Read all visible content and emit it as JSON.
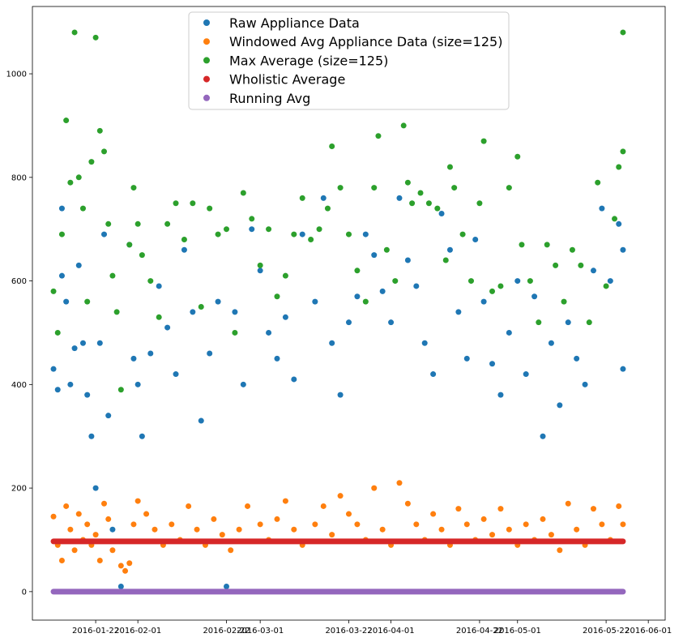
{
  "chart_data": {
    "type": "scatter",
    "title": "",
    "xlabel": "",
    "ylabel": "",
    "x_range": [
      "2016-01-07",
      "2016-06-05"
    ],
    "ylim": [
      -55,
      1130
    ],
    "grid": false,
    "legend_position": "top-center",
    "x_ticks": [
      {
        "date": "2016-01-22",
        "label": "2016-01-22"
      },
      {
        "date": "2016-02-01",
        "label": "2016-02-01"
      },
      {
        "date": "2016-02-22",
        "label": "2016-02-22"
      },
      {
        "date": "2016-03-01",
        "label": "2016-03-01"
      },
      {
        "date": "2016-03-22",
        "label": "2016-03-22"
      },
      {
        "date": "2016-04-01",
        "label": "2016-04-01"
      },
      {
        "date": "2016-04-22",
        "label": "2016-04-22"
      },
      {
        "date": "2016-05-01",
        "label": "2016-05-01"
      },
      {
        "date": "2016-05-22",
        "label": "2016-05-22"
      },
      {
        "date": "2016-06-01",
        "label": "2016-06-01"
      }
    ],
    "y_ticks": [
      0,
      200,
      400,
      600,
      800,
      1000
    ],
    "series": [
      {
        "name": "Raw Appliance Data",
        "color": "#1f77b4",
        "points": [
          [
            "2016-01-12",
            430
          ],
          [
            "2016-01-13",
            390
          ],
          [
            "2016-01-14",
            740
          ],
          [
            "2016-01-14",
            610
          ],
          [
            "2016-01-15",
            560
          ],
          [
            "2016-01-16",
            400
          ],
          [
            "2016-01-17",
            470
          ],
          [
            "2016-01-18",
            630
          ],
          [
            "2016-01-19",
            480
          ],
          [
            "2016-01-20",
            380
          ],
          [
            "2016-01-21",
            300
          ],
          [
            "2016-01-22",
            200
          ],
          [
            "2016-01-23",
            480
          ],
          [
            "2016-01-24",
            690
          ],
          [
            "2016-01-25",
            340
          ],
          [
            "2016-01-26",
            120
          ],
          [
            "2016-01-28",
            10
          ],
          [
            "2016-01-30",
            670
          ],
          [
            "2016-01-31",
            450
          ],
          [
            "2016-02-01",
            400
          ],
          [
            "2016-02-02",
            300
          ],
          [
            "2016-02-04",
            460
          ],
          [
            "2016-02-06",
            590
          ],
          [
            "2016-02-08",
            510
          ],
          [
            "2016-02-10",
            420
          ],
          [
            "2016-02-12",
            660
          ],
          [
            "2016-02-14",
            540
          ],
          [
            "2016-02-16",
            330
          ],
          [
            "2016-02-18",
            460
          ],
          [
            "2016-02-20",
            560
          ],
          [
            "2016-02-22",
            10
          ],
          [
            "2016-02-24",
            540
          ],
          [
            "2016-02-26",
            400
          ],
          [
            "2016-02-28",
            700
          ],
          [
            "2016-03-01",
            620
          ],
          [
            "2016-03-03",
            500
          ],
          [
            "2016-03-05",
            450
          ],
          [
            "2016-03-07",
            530
          ],
          [
            "2016-03-09",
            410
          ],
          [
            "2016-03-11",
            690
          ],
          [
            "2016-03-14",
            560
          ],
          [
            "2016-03-16",
            760
          ],
          [
            "2016-03-18",
            480
          ],
          [
            "2016-03-20",
            380
          ],
          [
            "2016-03-22",
            520
          ],
          [
            "2016-03-24",
            570
          ],
          [
            "2016-03-26",
            690
          ],
          [
            "2016-03-28",
            650
          ],
          [
            "2016-03-30",
            580
          ],
          [
            "2016-04-01",
            520
          ],
          [
            "2016-04-03",
            760
          ],
          [
            "2016-04-05",
            640
          ],
          [
            "2016-04-07",
            590
          ],
          [
            "2016-04-09",
            480
          ],
          [
            "2016-04-11",
            420
          ],
          [
            "2016-04-13",
            730
          ],
          [
            "2016-04-15",
            660
          ],
          [
            "2016-04-17",
            540
          ],
          [
            "2016-04-19",
            450
          ],
          [
            "2016-04-21",
            680
          ],
          [
            "2016-04-23",
            560
          ],
          [
            "2016-04-25",
            440
          ],
          [
            "2016-04-27",
            380
          ],
          [
            "2016-04-29",
            500
          ],
          [
            "2016-05-01",
            600
          ],
          [
            "2016-05-03",
            420
          ],
          [
            "2016-05-05",
            570
          ],
          [
            "2016-05-07",
            300
          ],
          [
            "2016-05-09",
            480
          ],
          [
            "2016-05-11",
            360
          ],
          [
            "2016-05-13",
            520
          ],
          [
            "2016-05-15",
            450
          ],
          [
            "2016-05-17",
            400
          ],
          [
            "2016-05-19",
            620
          ],
          [
            "2016-05-21",
            740
          ],
          [
            "2016-05-23",
            600
          ],
          [
            "2016-05-25",
            710
          ],
          [
            "2016-05-26",
            660
          ],
          [
            "2016-05-26",
            430
          ]
        ]
      },
      {
        "name": "Windowed Avg Appliance Data (size=125)",
        "color": "#ff7f0e",
        "points": [
          [
            "2016-01-12",
            145
          ],
          [
            "2016-01-13",
            90
          ],
          [
            "2016-01-14",
            60
          ],
          [
            "2016-01-15",
            165
          ],
          [
            "2016-01-16",
            120
          ],
          [
            "2016-01-17",
            80
          ],
          [
            "2016-01-18",
            150
          ],
          [
            "2016-01-19",
            100
          ],
          [
            "2016-01-20",
            130
          ],
          [
            "2016-01-21",
            90
          ],
          [
            "2016-01-22",
            110
          ],
          [
            "2016-01-23",
            60
          ],
          [
            "2016-01-24",
            170
          ],
          [
            "2016-01-25",
            140
          ],
          [
            "2016-01-26",
            80
          ],
          [
            "2016-01-28",
            50
          ],
          [
            "2016-01-29",
            40
          ],
          [
            "2016-01-30",
            55
          ],
          [
            "2016-01-31",
            130
          ],
          [
            "2016-02-01",
            175
          ],
          [
            "2016-02-03",
            150
          ],
          [
            "2016-02-05",
            120
          ],
          [
            "2016-02-07",
            90
          ],
          [
            "2016-02-09",
            130
          ],
          [
            "2016-02-11",
            100
          ],
          [
            "2016-02-13",
            165
          ],
          [
            "2016-02-15",
            120
          ],
          [
            "2016-02-17",
            90
          ],
          [
            "2016-02-19",
            140
          ],
          [
            "2016-02-21",
            110
          ],
          [
            "2016-02-23",
            80
          ],
          [
            "2016-02-25",
            120
          ],
          [
            "2016-02-27",
            165
          ],
          [
            "2016-03-01",
            130
          ],
          [
            "2016-03-03",
            100
          ],
          [
            "2016-03-05",
            140
          ],
          [
            "2016-03-07",
            175
          ],
          [
            "2016-03-09",
            120
          ],
          [
            "2016-03-11",
            90
          ],
          [
            "2016-03-14",
            130
          ],
          [
            "2016-03-16",
            165
          ],
          [
            "2016-03-18",
            110
          ],
          [
            "2016-03-20",
            185
          ],
          [
            "2016-03-22",
            150
          ],
          [
            "2016-03-24",
            130
          ],
          [
            "2016-03-26",
            100
          ],
          [
            "2016-03-28",
            200
          ],
          [
            "2016-03-30",
            120
          ],
          [
            "2016-04-01",
            90
          ],
          [
            "2016-04-03",
            210
          ],
          [
            "2016-04-05",
            170
          ],
          [
            "2016-04-07",
            130
          ],
          [
            "2016-04-09",
            100
          ],
          [
            "2016-04-11",
            150
          ],
          [
            "2016-04-13",
            120
          ],
          [
            "2016-04-15",
            90
          ],
          [
            "2016-04-17",
            160
          ],
          [
            "2016-04-19",
            130
          ],
          [
            "2016-04-21",
            100
          ],
          [
            "2016-04-23",
            140
          ],
          [
            "2016-04-25",
            110
          ],
          [
            "2016-04-27",
            160
          ],
          [
            "2016-04-29",
            120
          ],
          [
            "2016-05-01",
            90
          ],
          [
            "2016-05-03",
            130
          ],
          [
            "2016-05-05",
            100
          ],
          [
            "2016-05-07",
            140
          ],
          [
            "2016-05-09",
            110
          ],
          [
            "2016-05-11",
            80
          ],
          [
            "2016-05-13",
            170
          ],
          [
            "2016-05-15",
            120
          ],
          [
            "2016-05-17",
            90
          ],
          [
            "2016-05-19",
            160
          ],
          [
            "2016-05-21",
            130
          ],
          [
            "2016-05-23",
            100
          ],
          [
            "2016-05-25",
            165
          ],
          [
            "2016-05-26",
            130
          ]
        ]
      },
      {
        "name": "Max Average (size=125)",
        "color": "#2ca02c",
        "points": [
          [
            "2016-01-12",
            580
          ],
          [
            "2016-01-13",
            500
          ],
          [
            "2016-01-14",
            690
          ],
          [
            "2016-01-15",
            910
          ],
          [
            "2016-01-16",
            790
          ],
          [
            "2016-01-17",
            1080
          ],
          [
            "2016-01-18",
            800
          ],
          [
            "2016-01-19",
            740
          ],
          [
            "2016-01-20",
            560
          ],
          [
            "2016-01-21",
            830
          ],
          [
            "2016-01-22",
            1070
          ],
          [
            "2016-01-23",
            890
          ],
          [
            "2016-01-24",
            850
          ],
          [
            "2016-01-25",
            710
          ],
          [
            "2016-01-26",
            610
          ],
          [
            "2016-01-27",
            540
          ],
          [
            "2016-01-28",
            390
          ],
          [
            "2016-01-30",
            670
          ],
          [
            "2016-01-31",
            780
          ],
          [
            "2016-02-01",
            710
          ],
          [
            "2016-02-02",
            650
          ],
          [
            "2016-02-04",
            600
          ],
          [
            "2016-02-06",
            530
          ],
          [
            "2016-02-08",
            710
          ],
          [
            "2016-02-10",
            750
          ],
          [
            "2016-02-12",
            680
          ],
          [
            "2016-02-14",
            750
          ],
          [
            "2016-02-16",
            550
          ],
          [
            "2016-02-18",
            740
          ],
          [
            "2016-02-20",
            690
          ],
          [
            "2016-02-22",
            700
          ],
          [
            "2016-02-24",
            500
          ],
          [
            "2016-02-26",
            770
          ],
          [
            "2016-02-28",
            720
          ],
          [
            "2016-03-01",
            630
          ],
          [
            "2016-03-03",
            700
          ],
          [
            "2016-03-05",
            570
          ],
          [
            "2016-03-07",
            610
          ],
          [
            "2016-03-09",
            690
          ],
          [
            "2016-03-11",
            760
          ],
          [
            "2016-03-13",
            680
          ],
          [
            "2016-03-15",
            700
          ],
          [
            "2016-03-17",
            740
          ],
          [
            "2016-03-18",
            860
          ],
          [
            "2016-03-20",
            780
          ],
          [
            "2016-03-22",
            690
          ],
          [
            "2016-03-24",
            620
          ],
          [
            "2016-03-26",
            560
          ],
          [
            "2016-03-28",
            780
          ],
          [
            "2016-03-29",
            880
          ],
          [
            "2016-03-31",
            660
          ],
          [
            "2016-04-02",
            600
          ],
          [
            "2016-04-04",
            900
          ],
          [
            "2016-04-05",
            790
          ],
          [
            "2016-04-06",
            750
          ],
          [
            "2016-04-08",
            770
          ],
          [
            "2016-04-10",
            750
          ],
          [
            "2016-04-12",
            740
          ],
          [
            "2016-04-14",
            640
          ],
          [
            "2016-04-15",
            820
          ],
          [
            "2016-04-16",
            780
          ],
          [
            "2016-04-18",
            690
          ],
          [
            "2016-04-20",
            600
          ],
          [
            "2016-04-22",
            750
          ],
          [
            "2016-04-23",
            870
          ],
          [
            "2016-04-25",
            580
          ],
          [
            "2016-04-27",
            590
          ],
          [
            "2016-04-29",
            780
          ],
          [
            "2016-05-01",
            840
          ],
          [
            "2016-05-02",
            670
          ],
          [
            "2016-05-04",
            600
          ],
          [
            "2016-05-06",
            520
          ],
          [
            "2016-05-08",
            670
          ],
          [
            "2016-05-10",
            630
          ],
          [
            "2016-05-12",
            560
          ],
          [
            "2016-05-14",
            660
          ],
          [
            "2016-05-16",
            630
          ],
          [
            "2016-05-18",
            520
          ],
          [
            "2016-05-20",
            790
          ],
          [
            "2016-05-22",
            590
          ],
          [
            "2016-05-24",
            720
          ],
          [
            "2016-05-25",
            820
          ],
          [
            "2016-05-26",
            850
          ],
          [
            "2016-05-26",
            1080
          ]
        ]
      },
      {
        "name": "Wholistic Average",
        "color": "#d62728",
        "points": [
          [
            "2016-01-12",
            97
          ],
          [
            "2016-05-26",
            97
          ]
        ]
      },
      {
        "name": "Running Avg",
        "color": "#9467bd",
        "points": [
          [
            "2016-01-12",
            0
          ],
          [
            "2016-05-26",
            0
          ]
        ]
      }
    ]
  }
}
